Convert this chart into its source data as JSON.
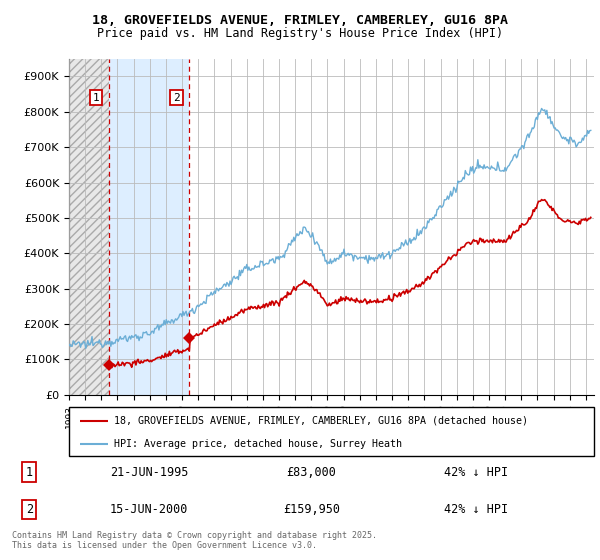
{
  "title_line1": "18, GROVEFIELDS AVENUE, FRIMLEY, CAMBERLEY, GU16 8PA",
  "title_line2": "Price paid vs. HM Land Registry's House Price Index (HPI)",
  "ylim": [
    0,
    950000
  ],
  "yticks": [
    0,
    100000,
    200000,
    300000,
    400000,
    500000,
    600000,
    700000,
    800000,
    900000
  ],
  "ytick_labels": [
    "£0",
    "£100K",
    "£200K",
    "£300K",
    "£400K",
    "£500K",
    "£600K",
    "£700K",
    "£800K",
    "£900K"
  ],
  "legend_line1": "18, GROVEFIELDS AVENUE, FRIMLEY, CAMBERLEY, GU16 8PA (detached house)",
  "legend_line2": "HPI: Average price, detached house, Surrey Heath",
  "purchase1": {
    "date_x": 1995.47,
    "price": 83000,
    "label": "1"
  },
  "purchase2": {
    "date_x": 2000.45,
    "price": 159950,
    "label": "2"
  },
  "hpi_color": "#6baed6",
  "price_color": "#cc0000",
  "grid_color": "#bbbbbb",
  "footnote": "Contains HM Land Registry data © Crown copyright and database right 2025.\nThis data is licensed under the Open Government Licence v3.0.",
  "table": [
    {
      "num": "1",
      "date": "21-JUN-1995",
      "price": "£83,000",
      "note": "42% ↓ HPI"
    },
    {
      "num": "2",
      "date": "15-JUN-2000",
      "price": "£159,950",
      "note": "42% ↓ HPI"
    }
  ],
  "xlim_start": 1993,
  "xlim_end": 2025.5
}
